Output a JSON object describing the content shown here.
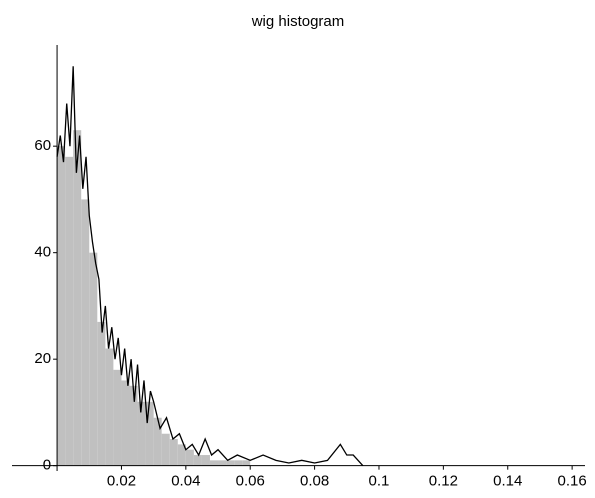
{
  "chart_data": {
    "type": "histogram",
    "title": "wig histogram",
    "bins": [
      0,
      0.0025,
      0.005,
      0.0075,
      0.01,
      0.0125,
      0.015,
      0.0175,
      0.02,
      0.0225,
      0.025,
      0.0275,
      0.03,
      0.0325,
      0.035,
      0.0375,
      0.04,
      0.0425,
      0.045,
      0.0475,
      0.05,
      0.0525,
      0.055,
      0.0575,
      0.06
    ],
    "counts": [
      60,
      58,
      63,
      50,
      40,
      27,
      22,
      18,
      16,
      15,
      12,
      12,
      9,
      6,
      5,
      4,
      3,
      2,
      2,
      1,
      1,
      1,
      1,
      1
    ],
    "color": "#c0c0c0",
    "overlay": {
      "type": "line",
      "color": "#000000",
      "x": [
        0,
        0.001,
        0.002,
        0.003,
        0.004,
        0.005,
        0.006,
        0.007,
        0.008,
        0.009,
        0.01,
        0.011,
        0.012,
        0.013,
        0.014,
        0.015,
        0.016,
        0.017,
        0.018,
        0.019,
        0.02,
        0.021,
        0.022,
        0.023,
        0.024,
        0.025,
        0.026,
        0.027,
        0.028,
        0.029,
        0.03,
        0.032,
        0.034,
        0.036,
        0.038,
        0.04,
        0.042,
        0.044,
        0.046,
        0.048,
        0.05,
        0.053,
        0.056,
        0.06,
        0.064,
        0.068,
        0.072,
        0.076,
        0.08,
        0.084,
        0.088,
        0.09,
        0.092,
        0.095
      ],
      "values": [
        58,
        62,
        57,
        68,
        60,
        75,
        55,
        62,
        52,
        58,
        47,
        42,
        38,
        35,
        25,
        30,
        22,
        26,
        20,
        24,
        17,
        22,
        15,
        20,
        12,
        19,
        10,
        16,
        8,
        14,
        12,
        7,
        9,
        5,
        6,
        3,
        4,
        2,
        5,
        2,
        3,
        1,
        2,
        1,
        2,
        1,
        0.5,
        1,
        0.5,
        1,
        4,
        2,
        2,
        0
      ]
    },
    "xlim": [
      -0.014,
      0.164
    ],
    "ylim": [
      -1,
      79
    ],
    "xticks": [
      0.02,
      0.04,
      0.06,
      0.08,
      0.1,
      0.12,
      0.14,
      0.16
    ],
    "yticks": [
      0,
      20,
      40,
      60
    ]
  }
}
